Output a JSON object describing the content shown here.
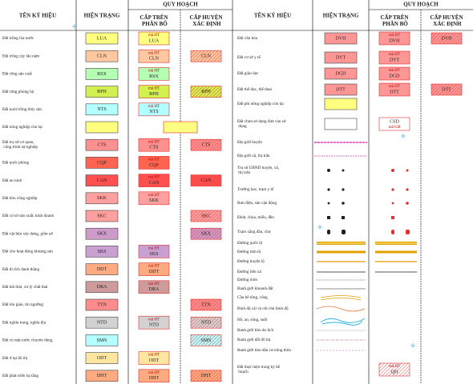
{
  "header": {
    "left": {
      "name": "TÊN KÝ HIỆU",
      "current": "HIỆN TRẠNG",
      "plan": "QUY HOẠCH",
      "upper": "CẤP TRÊN PHÂN BỔ",
      "district": "CẤP HUYỆN XÁC ĐỊNH"
    },
    "right": {
      "name": "TÊN KÝ HIỆU",
      "current": "HIỆN TRẠNG",
      "plan": "QUY HOẠCH",
      "upper": "CẤP TRÊN PHÂN BỔ",
      "district": "CẤP HUYỆN XÁC ĐỊNH"
    }
  },
  "left_rows": [
    {
      "name": "Đất trồng lúa nước",
      "code": "LUA",
      "color": "#ffff80",
      "upper": {
        "label": "mã HT",
        "code": "LUA"
      }
    },
    {
      "name": "Đất trồng cây lâu năm",
      "code": "CLN",
      "color": "#ffc8a0",
      "upper": {
        "label": "mã HT",
        "code": "CLN"
      },
      "district": {
        "code": "CLN"
      }
    },
    {
      "name": "Đất rừng sản xuất",
      "code": "RSX",
      "color": "#b4ffb4",
      "upper": {
        "label": "mã HT",
        "code": "RSX"
      }
    },
    {
      "name": "Đất rừng phòng hộ",
      "code": "RPH",
      "color": "#d2f050",
      "upper": {
        "label": "mã HT",
        "code": "RPH"
      },
      "district": {
        "code": "RPH"
      }
    },
    {
      "name": "Đất nuôi trồng thủy sản",
      "code": "NTS",
      "color": "#b4ffff",
      "upper": {
        "label": "mã HT",
        "code": "NTS"
      }
    },
    {
      "name": "Đất nông nghiệp còn lại",
      "color": "#ffff80",
      "upper": {}
    },
    {
      "name": "Đất trụ sở cơ quan, công trình sự nghiệp",
      "code": "CTS",
      "color": "#ff9090",
      "upper": {
        "label": "mã HT",
        "code": "CTS"
      },
      "district": {
        "code": "CTS"
      }
    },
    {
      "name": "Đất quốc phòng",
      "code": "CQP",
      "color": "#ff6450",
      "upper": {
        "label": "mã HT",
        "code": "CQP"
      }
    },
    {
      "name": "Đất an ninh",
      "code": "CAN",
      "color": "#ff5050",
      "upper": {
        "label": "mã HT",
        "code": "CAN"
      },
      "district": {
        "code": "CAN"
      }
    },
    {
      "name": "Đất khu công nghiệp",
      "code": "SKK",
      "color": "#ffa0a0",
      "upper": {
        "label": "mã HT",
        "code": "SKK"
      }
    },
    {
      "name": "Đất cơ sở sản xuất, kinh doanh",
      "code": "SKC",
      "color": "#ffa0a0",
      "district": {
        "code": "SKC"
      }
    },
    {
      "name": "Đất vật liệu xây dựng, gốm sứ",
      "code": "SKX",
      "color": "#cd9bc8",
      "district": {
        "code": "SKX"
      }
    },
    {
      "name": "Đất cho hoạt động khoáng sản",
      "code": "SKS",
      "color": "#c8a0d2",
      "upper": {
        "label": "mã HT",
        "code": "SKS"
      }
    },
    {
      "name": "Đất di tích danh thắng",
      "code": "DDT",
      "color": "#ffaa80",
      "upper": {
        "label": "mã HT",
        "code": "DDT"
      }
    },
    {
      "name": "Đất bãi thải, xử lý chất thải",
      "code": "DRA",
      "color": "#cd9b9b",
      "upper": {
        "label": "mã HT",
        "code": "DRA"
      }
    },
    {
      "name": "Đất tôn giáo, tín ngưỡng",
      "code": "TTN",
      "color": "#ff8c8c",
      "district": {
        "code": "TTN"
      }
    },
    {
      "name": "Đất nghĩa trang, nghĩa địa",
      "code": "NTD",
      "color": "#d2d2d2",
      "upper": {
        "label": "mã HT",
        "code": "NTD"
      },
      "district": {
        "code": "NTD"
      }
    },
    {
      "name": "Đất có mặt nước chuyên dùng",
      "code": "SMN",
      "color": "#b4ffff",
      "district": {
        "code": "SMN"
      }
    },
    {
      "name": "Đất ở tại đô thị",
      "code": "ODT",
      "color": "#ffe6a0",
      "upper": {
        "label": "mã HT",
        "code": "ODT"
      }
    },
    {
      "name": "Đất phát triển hạ tầng",
      "code": "DHT",
      "color": "#ffaa80",
      "upper": {
        "label": "mã HT",
        "code": "DHT"
      },
      "district": {
        "code": "DHT"
      }
    }
  ],
  "right_rows": [
    {
      "name": "Đất văn hóa",
      "code": "DVH",
      "color": "#ff9696",
      "upper": {
        "label": "mã HT",
        "code": "DVH"
      },
      "district": {
        "code": "DVH"
      }
    },
    {
      "name": "Đất cơ sở y tế",
      "code": "DYT",
      "color": "#ff9696",
      "upper": {
        "label": "mã HT",
        "code": "DYT"
      }
    },
    {
      "name": "Đất giáo dục",
      "code": "DGD",
      "color": "#ff9696",
      "upper": {
        "label": "mã HT",
        "code": "DGD"
      }
    },
    {
      "name": "Đất thể dục, thể thao",
      "code": "DTT",
      "color": "#ff9696",
      "upper": {
        "label": "mã HT",
        "code": "DTT"
      },
      "district": {
        "code": "DTT"
      }
    },
    {
      "name": "Đất phi nông nghiệp còn lại",
      "color": "#ffff80"
    },
    {
      "name": "Đất chưa sử dụng đưa vào sử dụng",
      "color": "#ffffff",
      "upper": {
        "code": "CSD",
        "label": "mã GH"
      }
    },
    {
      "name": "Địa giới huyện"
    },
    {
      "name": "Địa giới xã, thị trấn"
    },
    {
      "name": "Trụ sở UBND huyện, xã, thị trấn"
    },
    {
      "name": "Trường học, trạm y tế"
    },
    {
      "name": "Bưu điện, sân vận động"
    },
    {
      "name": "Đình, chùa, miếu, đền"
    },
    {
      "name": "Trạm xăng dầu, chợ"
    },
    {
      "name": "Đường quốc lộ"
    },
    {
      "name": "Đường tỉnh lộ"
    },
    {
      "name": "Đường huyện lộ"
    },
    {
      "name": "Đường liên xã"
    },
    {
      "name": "Đường mòn"
    },
    {
      "name": "Ranh giới khoanh đất"
    },
    {
      "name": "Cầu bê tông, cống"
    },
    {
      "name": "Bình độ cái và chỉ chủ bình độ"
    },
    {
      "name": "Hồ, ao, sông, suối"
    },
    {
      "name": "Ranh giới khu du lịch"
    },
    {
      "name": "Ranh giới đất đô thị"
    },
    {
      "name": "Ranh giới khu dân cư nông thôn"
    },
    {
      "name": "Đất thực hiện trong kỳ kế hoạch",
      "upper": {
        "label": "mã HT",
        "code": "QH",
        "hatched": true
      }
    }
  ]
}
